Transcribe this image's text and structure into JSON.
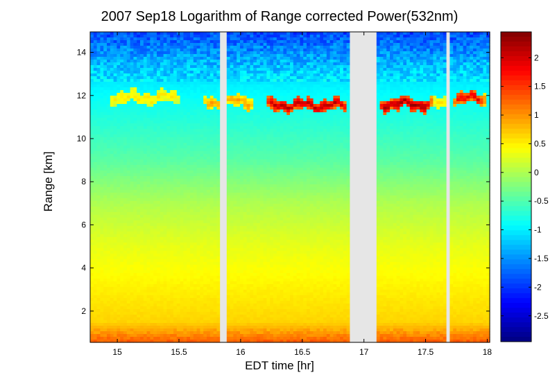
{
  "chart_data": {
    "type": "heatmap",
    "title": "2007 Sep18  Logarithm of Range corrected Power(532nm)",
    "xlabel": "EDT time [hr]",
    "ylabel": "Range [km]",
    "xlim": [
      14.78,
      18.02
    ],
    "ylim": [
      0.55,
      14.95
    ],
    "x_ticks": [
      "15",
      "15.5",
      "16",
      "16.5",
      "17",
      "17.5",
      "18"
    ],
    "x_tick_values": [
      15,
      15.5,
      16,
      16.5,
      17,
      17.5,
      18
    ],
    "y_ticks": [
      "2",
      "4",
      "6",
      "8",
      "10",
      "12",
      "14"
    ],
    "y_tick_values": [
      2,
      4,
      6,
      8,
      10,
      12,
      14
    ],
    "colorbar": {
      "clim": [
        -2.95,
        2.45
      ],
      "ticks": [
        "2",
        "1.5",
        "1",
        "0.5",
        "0",
        "-0.5",
        "-1",
        "-1.5",
        "-2",
        "-2.5"
      ],
      "tick_values": [
        2,
        1.5,
        1,
        0.5,
        0,
        -0.5,
        -1,
        -1.5,
        -2,
        -2.5
      ]
    },
    "colormap": "jet",
    "missing_data_color": "#e6e6e6",
    "data_gaps_hr": [
      [
        15.82,
        15.9
      ],
      [
        16.88,
        17.1
      ],
      [
        17.67,
        17.69
      ]
    ],
    "cloud_layers": [
      {
        "x_start": 14.95,
        "x_end": 15.5,
        "range_km": 11.9,
        "log_power": 0.5
      },
      {
        "x_start": 15.7,
        "x_end": 16.1,
        "range_km": 11.7,
        "log_power": 0.9
      },
      {
        "x_start": 16.2,
        "x_end": 16.87,
        "range_km": 11.55,
        "log_power": 2.2
      },
      {
        "x_start": 17.12,
        "x_end": 17.55,
        "range_km": 11.6,
        "log_power": 2.35
      },
      {
        "x_start": 17.55,
        "x_end": 17.68,
        "range_km": 11.6,
        "log_power": 0.5
      },
      {
        "x_start": 17.72,
        "x_end": 17.98,
        "range_km": 11.85,
        "log_power": 1.9
      }
    ],
    "background_profile": [
      {
        "range_km": 0.55,
        "log_power": 1.3
      },
      {
        "range_km": 1.1,
        "log_power": 0.9
      },
      {
        "range_km": 1.5,
        "log_power": 0.65
      },
      {
        "range_km": 3.0,
        "log_power": 0.5
      },
      {
        "range_km": 5.0,
        "log_power": 0.3
      },
      {
        "range_km": 7.0,
        "log_power": 0.0
      },
      {
        "range_km": 9.0,
        "log_power": -0.45
      },
      {
        "range_km": 11.0,
        "log_power": -0.75
      },
      {
        "range_km": 12.5,
        "log_power": -1.0
      },
      {
        "range_km": 13.5,
        "log_power": -1.3
      },
      {
        "range_km": 14.95,
        "log_power": -1.9
      }
    ]
  }
}
